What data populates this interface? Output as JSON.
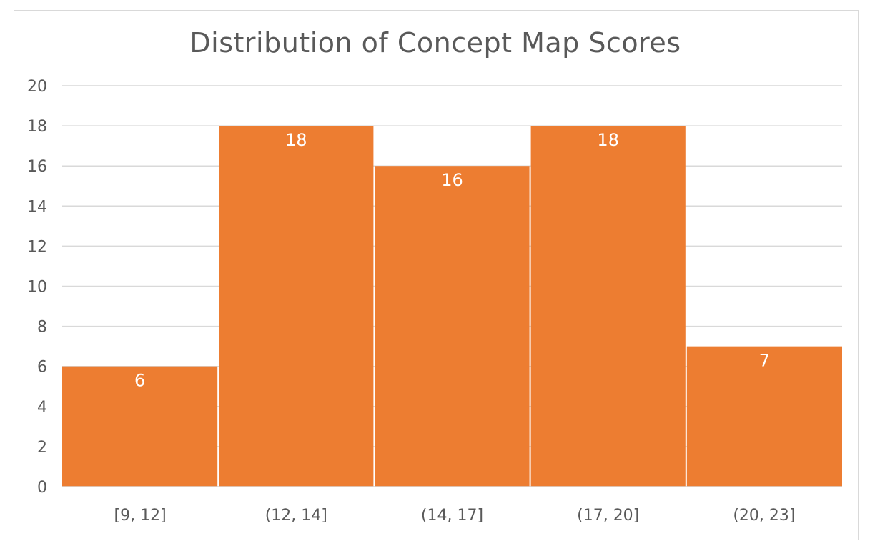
{
  "chart_data": {
    "type": "bar",
    "title": "Distribution of Concept Map Scores",
    "categories": [
      "[9, 12]",
      "(12, 14]",
      "(14, 17]",
      "(17, 20]",
      "(20, 23]"
    ],
    "values": [
      6,
      18,
      16,
      18,
      7
    ],
    "data_labels": [
      "6",
      "18",
      "16",
      "18",
      "7"
    ],
    "yticks": [
      "0",
      "2",
      "4",
      "6",
      "8",
      "10",
      "12",
      "14",
      "16",
      "18",
      "20"
    ],
    "ylim": [
      0,
      20
    ],
    "xlabel": "",
    "ylabel": "",
    "grid": true,
    "legend": "none",
    "colors": {
      "bar": "#ed7d31",
      "grid": "#d9d9d9",
      "text": "#595959",
      "bar_label": "#ffffff"
    }
  }
}
